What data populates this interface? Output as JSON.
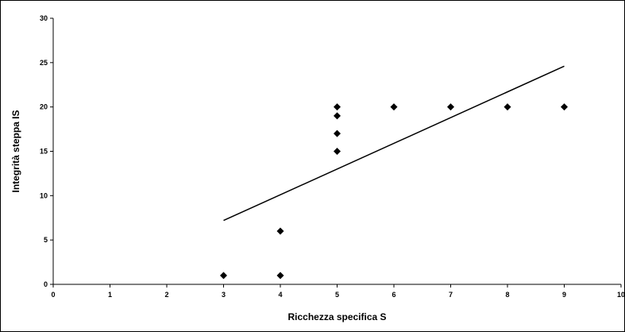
{
  "chart_data": {
    "type": "scatter",
    "title": "",
    "xlabel": "Ricchezza specifica S",
    "ylabel": "Integrità steppa IS",
    "xlim": [
      0,
      10
    ],
    "ylim": [
      0,
      30
    ],
    "x_ticks": [
      0,
      1,
      2,
      3,
      4,
      5,
      6,
      7,
      8,
      9,
      10
    ],
    "y_ticks": [
      0,
      5,
      10,
      15,
      20,
      25,
      30
    ],
    "grid": false,
    "legend": "none",
    "marker": "diamond",
    "marker_color": "#000000",
    "series": [
      {
        "x": [
          3,
          4,
          4,
          5,
          5,
          5,
          5,
          6,
          7,
          8,
          9
        ],
        "y": [
          1,
          1,
          6,
          15,
          17,
          19,
          20,
          20,
          20,
          20,
          20
        ]
      }
    ],
    "trendline": {
      "type": "linear",
      "x": [
        3,
        9
      ],
      "y": [
        7.2,
        24.6
      ],
      "color": "#000000"
    }
  }
}
